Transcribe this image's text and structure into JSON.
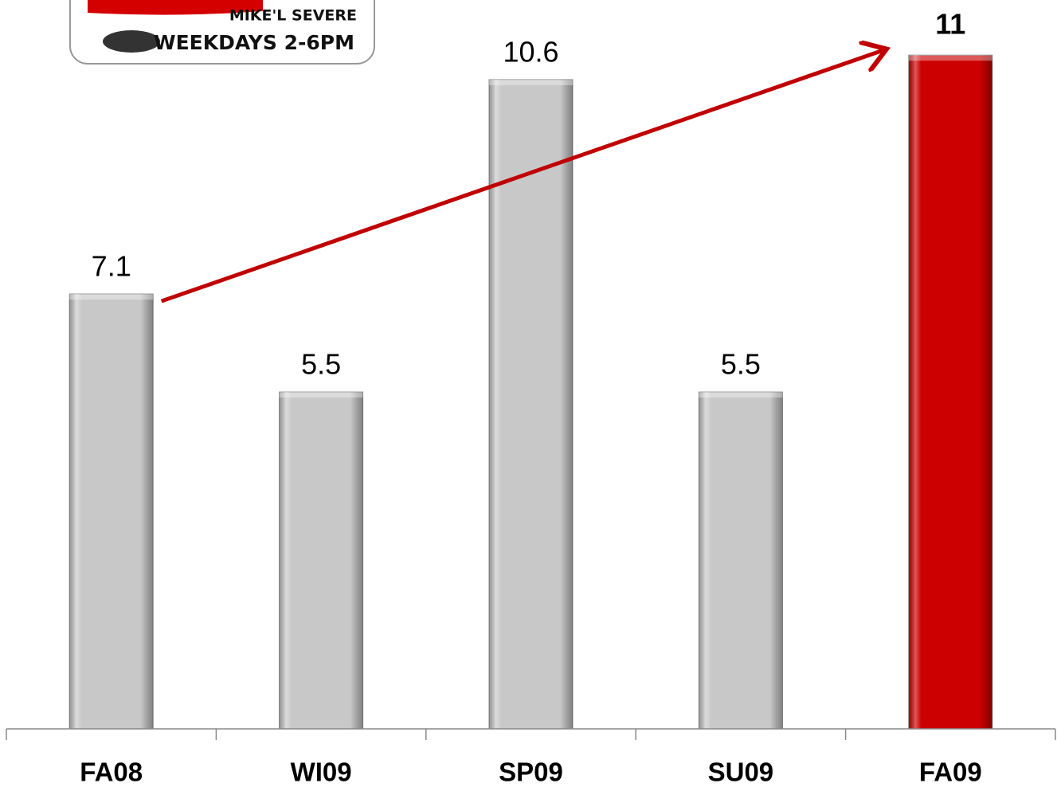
{
  "chart_data": {
    "type": "bar",
    "categories": [
      "FA08",
      "WI09",
      "SP09",
      "SU09",
      "FA09"
    ],
    "values": [
      7.1,
      5.5,
      10.6,
      5.5,
      11
    ],
    "colors": [
      "#c8c8c8",
      "#c8c8c8",
      "#c8c8c8",
      "#c8c8c8",
      "#cc0000"
    ],
    "value_label_bold": [
      false,
      false,
      false,
      false,
      true
    ],
    "ylim": [
      0,
      11.9
    ],
    "annotations": [
      "MIKE'L SEVERE",
      "WEEKDAYS 2-6PM"
    ]
  }
}
